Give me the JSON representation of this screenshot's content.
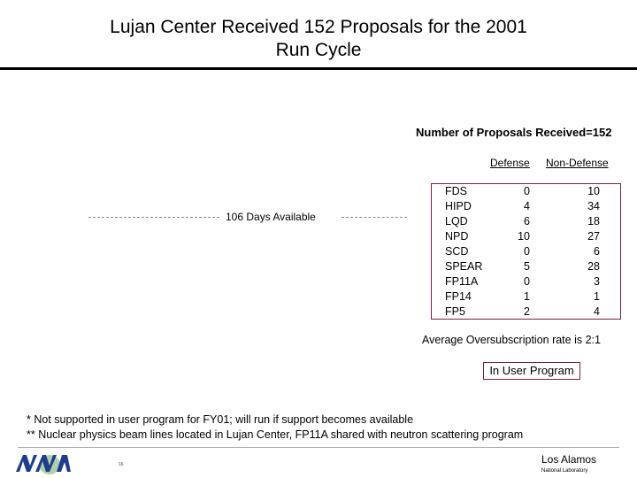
{
  "title": {
    "line1": "Lujan Center Received 152 Proposals for the 2001",
    "line2": "Run Cycle"
  },
  "summary": {
    "total_label": "Number of Proposals Received=152",
    "days_available": "106 Days Available",
    "oversubscription": "Average Oversubscription rate is 2:1",
    "user_program_box": "In User Program"
  },
  "table": {
    "headers": {
      "defense": "Defense",
      "non_defense": "Non-Defense"
    },
    "rows": [
      {
        "name": "FDS",
        "defense": "0",
        "non_defense": "10"
      },
      {
        "name": "HIPD",
        "defense": "4",
        "non_defense": "34"
      },
      {
        "name": "LQD",
        "defense": "6",
        "non_defense": "18"
      },
      {
        "name": "NPD",
        "defense": "10",
        "non_defense": "27"
      },
      {
        "name": "SCD",
        "defense": "0",
        "non_defense": "6"
      },
      {
        "name": "SPEAR",
        "defense": "5",
        "non_defense": "28"
      },
      {
        "name": "FP11A",
        "defense": "0",
        "non_defense": "3"
      },
      {
        "name": "FP14",
        "defense": "1",
        "non_defense": "1"
      },
      {
        "name": "FP5",
        "defense": "2",
        "non_defense": "4"
      }
    ]
  },
  "footnotes": {
    "note1": "*  Not supported in user program for FY01; will run if support becomes available",
    "note2": "** Nuclear physics beam lines located in Lujan Center, FP11A shared with neutron scattering program"
  },
  "footer": {
    "logo_icon": "nnsa-logo-icon",
    "page_mark": "16",
    "lab_name": "Los Alamos",
    "lab_sub": "National Laboratory"
  },
  "colors": {
    "box_border": "#7a1f4a",
    "logo_blue": "#1f3d8a",
    "logo_green": "#4a9a4a"
  }
}
